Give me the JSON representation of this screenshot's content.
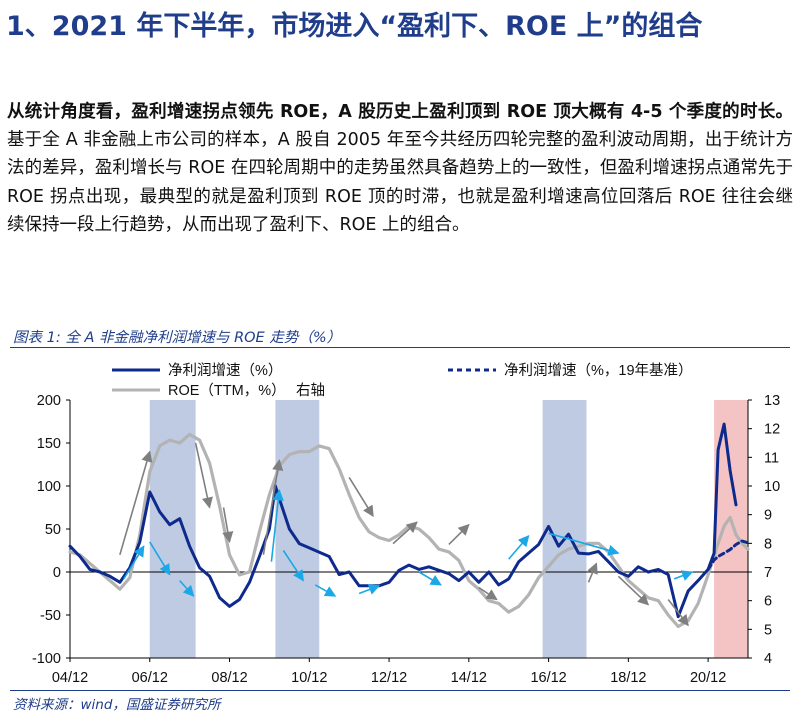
{
  "heading": "1、2021 年下半年，市场进入“盈利下、ROE 上”的组合",
  "paragraph": {
    "bold_lead": "从统计角度看，盈利增速拐点领先 ROE，A 股历史上盈利顶到 ROE 顶大概有 4-5 个季度的时长。",
    "text": "基于全 A 非金融上市公司的样本，A 股自 2005 年至今共经历四轮完整的盈利波动周期，出于统计方法的差异，盈利增长与 ROE 在四轮周期中的走势虽然具备趋势上的一致性，但盈利增速拐点通常先于 ROE 拐点出现，最典型的就是盈利顶到 ROE 顶的时滞，也就是盈利增速高位回落后 ROE 往往会继续保持一段上行趋势，从而出现了盈利下、ROE 上的组合。"
  },
  "figure_caption": "图表 1:  全 A 非金融净利润增速与 ROE 走势（%）",
  "source": "资料来源：wind，国盛证券研究所",
  "colors": {
    "heading": "#1f3d8a",
    "profit": "#0d2a8c",
    "roe": "#b3b3b3",
    "shade_blue": "#a9b9d9",
    "shade_red": "#f2b8b8",
    "arrow_gray": "#7f7f7f",
    "arrow_blue": "#1aa8e6"
  },
  "chart_data": {
    "type": "line",
    "legend": {
      "profit": "净利润增速（%）",
      "profit_base19": "净利润增速（%，19年基准）",
      "roe": "ROE（TTM，%）",
      "roe_note": "右轴"
    },
    "x_range": [
      2004.75,
      2021.75
    ],
    "x_ticks": [
      {
        "x": 2004.75,
        "label": "04/12"
      },
      {
        "x": 2006.75,
        "label": "06/12"
      },
      {
        "x": 2008.75,
        "label": "08/12"
      },
      {
        "x": 2010.75,
        "label": "10/12"
      },
      {
        "x": 2012.75,
        "label": "12/12"
      },
      {
        "x": 2014.75,
        "label": "14/12"
      },
      {
        "x": 2016.75,
        "label": "16/12"
      },
      {
        "x": 2018.75,
        "label": "18/12"
      },
      {
        "x": 2020.75,
        "label": "20/12"
      }
    ],
    "y_left": {
      "min": -100,
      "max": 200,
      "ticks": [
        -100,
        -50,
        0,
        50,
        100,
        150,
        200
      ]
    },
    "y_right": {
      "min": 4,
      "max": 13,
      "ticks": [
        4,
        5,
        6,
        7,
        8,
        9,
        10,
        11,
        12,
        13
      ]
    },
    "shaded_periods": [
      {
        "from": 2006.75,
        "to": 2007.9,
        "color": "blue"
      },
      {
        "from": 2009.9,
        "to": 2011.0,
        "color": "blue"
      },
      {
        "from": 2016.6,
        "to": 2017.7,
        "color": "blue"
      },
      {
        "from": 2020.9,
        "to": 2021.75,
        "color": "red"
      }
    ],
    "series": [
      {
        "name": "净利润增速（%）",
        "axis": "left",
        "style": "solid",
        "points": [
          [
            2004.75,
            30
          ],
          [
            2005.0,
            18
          ],
          [
            2005.25,
            3
          ],
          [
            2005.5,
            0
          ],
          [
            2005.75,
            -5
          ],
          [
            2006.0,
            -12
          ],
          [
            2006.25,
            5
          ],
          [
            2006.5,
            35
          ],
          [
            2006.75,
            93
          ],
          [
            2007.0,
            70
          ],
          [
            2007.25,
            55
          ],
          [
            2007.5,
            62
          ],
          [
            2007.75,
            30
          ],
          [
            2008.0,
            5
          ],
          [
            2008.25,
            -5
          ],
          [
            2008.5,
            -30
          ],
          [
            2008.75,
            -40
          ],
          [
            2009.0,
            -32
          ],
          [
            2009.25,
            -12
          ],
          [
            2009.5,
            18
          ],
          [
            2009.75,
            50
          ],
          [
            2009.9,
            100
          ],
          [
            2010.0,
            85
          ],
          [
            2010.25,
            50
          ],
          [
            2010.5,
            33
          ],
          [
            2010.75,
            28
          ],
          [
            2011.0,
            23
          ],
          [
            2011.25,
            18
          ],
          [
            2011.5,
            -3
          ],
          [
            2011.75,
            0
          ],
          [
            2012.0,
            -16
          ],
          [
            2012.5,
            -16
          ],
          [
            2012.75,
            -12
          ],
          [
            2013.0,
            2
          ],
          [
            2013.25,
            8
          ],
          [
            2013.5,
            3
          ],
          [
            2013.75,
            6
          ],
          [
            2014.0,
            2
          ],
          [
            2014.25,
            -2
          ],
          [
            2014.5,
            -10
          ],
          [
            2014.75,
            0
          ],
          [
            2015.0,
            -12
          ],
          [
            2015.25,
            0
          ],
          [
            2015.5,
            -15
          ],
          [
            2015.75,
            -8
          ],
          [
            2016.0,
            12
          ],
          [
            2016.25,
            22
          ],
          [
            2016.5,
            32
          ],
          [
            2016.75,
            53
          ],
          [
            2017.0,
            30
          ],
          [
            2017.25,
            44
          ],
          [
            2017.5,
            22
          ],
          [
            2017.75,
            21
          ],
          [
            2018.0,
            24
          ],
          [
            2018.25,
            12
          ],
          [
            2018.5,
            0
          ],
          [
            2018.75,
            -5
          ],
          [
            2019.0,
            6
          ],
          [
            2019.25,
            0
          ],
          [
            2019.5,
            3
          ],
          [
            2019.75,
            -3
          ],
          [
            2020.0,
            -52
          ],
          [
            2020.25,
            -22
          ],
          [
            2020.5,
            -10
          ],
          [
            2020.75,
            3
          ],
          [
            2020.9,
            22
          ],
          [
            2021.0,
            142
          ],
          [
            2021.15,
            172
          ],
          [
            2021.3,
            118
          ],
          [
            2021.45,
            78
          ]
        ]
      },
      {
        "name": "净利润增速（%，19年基准）",
        "axis": "left",
        "style": "dashed",
        "points": [
          [
            2020.75,
            3
          ],
          [
            2020.9,
            14
          ],
          [
            2021.0,
            18
          ],
          [
            2021.15,
            22
          ],
          [
            2021.3,
            26
          ],
          [
            2021.45,
            32
          ],
          [
            2021.6,
            36
          ],
          [
            2021.75,
            34
          ]
        ]
      },
      {
        "name": "ROE（TTM，%）",
        "axis": "right",
        "style": "solid",
        "points": [
          [
            2004.75,
            7.7
          ],
          [
            2005.0,
            7.6
          ],
          [
            2005.25,
            7.3
          ],
          [
            2005.5,
            7.0
          ],
          [
            2005.75,
            6.7
          ],
          [
            2006.0,
            6.4
          ],
          [
            2006.25,
            6.8
          ],
          [
            2006.5,
            8.3
          ],
          [
            2006.75,
            10.5
          ],
          [
            2007.0,
            11.4
          ],
          [
            2007.25,
            11.6
          ],
          [
            2007.5,
            11.5
          ],
          [
            2007.75,
            11.8
          ],
          [
            2008.0,
            11.6
          ],
          [
            2008.25,
            10.8
          ],
          [
            2008.5,
            9.3
          ],
          [
            2008.75,
            7.6
          ],
          [
            2009.0,
            6.9
          ],
          [
            2009.25,
            7.0
          ],
          [
            2009.5,
            8.4
          ],
          [
            2009.75,
            9.7
          ],
          [
            2010.0,
            10.7
          ],
          [
            2010.25,
            11.1
          ],
          [
            2010.5,
            11.2
          ],
          [
            2010.75,
            11.2
          ],
          [
            2011.0,
            11.4
          ],
          [
            2011.25,
            11.3
          ],
          [
            2011.5,
            10.6
          ],
          [
            2011.75,
            9.7
          ],
          [
            2012.0,
            8.9
          ],
          [
            2012.25,
            8.4
          ],
          [
            2012.5,
            8.2
          ],
          [
            2012.75,
            8.1
          ],
          [
            2013.0,
            8.3
          ],
          [
            2013.25,
            8.6
          ],
          [
            2013.5,
            8.5
          ],
          [
            2013.75,
            8.2
          ],
          [
            2014.0,
            7.8
          ],
          [
            2014.25,
            7.7
          ],
          [
            2014.5,
            7.4
          ],
          [
            2014.75,
            6.7
          ],
          [
            2015.0,
            6.4
          ],
          [
            2015.25,
            6.0
          ],
          [
            2015.5,
            5.9
          ],
          [
            2015.75,
            5.6
          ],
          [
            2016.0,
            5.8
          ],
          [
            2016.25,
            6.2
          ],
          [
            2016.5,
            6.8
          ],
          [
            2016.75,
            7.2
          ],
          [
            2017.0,
            7.6
          ],
          [
            2017.25,
            7.8
          ],
          [
            2017.5,
            7.9
          ],
          [
            2017.75,
            8.0
          ],
          [
            2018.0,
            8.0
          ],
          [
            2018.25,
            7.7
          ],
          [
            2018.5,
            7.2
          ],
          [
            2018.75,
            6.7
          ],
          [
            2019.0,
            6.4
          ],
          [
            2019.25,
            6.1
          ],
          [
            2019.5,
            6.0
          ],
          [
            2019.75,
            5.5
          ],
          [
            2020.0,
            5.1
          ],
          [
            2020.25,
            5.3
          ],
          [
            2020.5,
            5.9
          ],
          [
            2020.75,
            6.9
          ],
          [
            2021.0,
            8.0
          ],
          [
            2021.15,
            8.6
          ],
          [
            2021.3,
            8.9
          ],
          [
            2021.45,
            8.3
          ],
          [
            2021.6,
            8.0
          ],
          [
            2021.75,
            7.8
          ]
        ]
      }
    ],
    "annotation_arrows": [
      {
        "color": "gray",
        "from": [
          2006.0,
          20
        ],
        "to": [
          2006.75,
          140
        ]
      },
      {
        "color": "gray",
        "from": [
          2007.9,
          150
        ],
        "to": [
          2008.25,
          75
        ]
      },
      {
        "color": "gray",
        "from": [
          2008.6,
          75
        ],
        "to": [
          2008.75,
          35
        ]
      },
      {
        "color": "gray",
        "from": [
          2009.6,
          20
        ],
        "to": [
          2010.0,
          130
        ]
      },
      {
        "color": "gray",
        "from": [
          2011.75,
          110
        ],
        "to": [
          2012.35,
          65
        ]
      },
      {
        "color": "gray",
        "from": [
          2012.85,
          33
        ],
        "to": [
          2013.45,
          58
        ]
      },
      {
        "color": "gray",
        "from": [
          2014.25,
          32
        ],
        "to": [
          2014.75,
          55
        ]
      },
      {
        "color": "gray",
        "from": [
          2015.0,
          -18
        ],
        "to": [
          2015.45,
          -32
        ]
      },
      {
        "color": "gray",
        "from": [
          2017.75,
          -12
        ],
        "to": [
          2017.95,
          10
        ]
      },
      {
        "color": "gray",
        "from": [
          2018.5,
          -5
        ],
        "to": [
          2019.25,
          -38
        ]
      },
      {
        "color": "gray",
        "from": [
          2019.75,
          -32
        ],
        "to": [
          2020.25,
          -62
        ]
      },
      {
        "color": "blue",
        "from": [
          2006.1,
          -8
        ],
        "to": [
          2006.6,
          30
        ]
      },
      {
        "color": "blue",
        "from": [
          2006.75,
          35
        ],
        "to": [
          2007.25,
          -3
        ]
      },
      {
        "color": "blue",
        "from": [
          2007.5,
          -10
        ],
        "to": [
          2007.85,
          -28
        ]
      },
      {
        "color": "blue",
        "from": [
          2009.8,
          12
        ],
        "to": [
          2010.0,
          95
        ]
      },
      {
        "color": "blue",
        "from": [
          2010.1,
          25
        ],
        "to": [
          2010.6,
          -10
        ]
      },
      {
        "color": "blue",
        "from": [
          2010.9,
          -15
        ],
        "to": [
          2011.4,
          -28
        ]
      },
      {
        "color": "blue",
        "from": [
          2012.0,
          -25
        ],
        "to": [
          2012.5,
          -16
        ]
      },
      {
        "color": "blue",
        "from": [
          2013.5,
          0
        ],
        "to": [
          2014.05,
          -15
        ]
      },
      {
        "color": "blue",
        "from": [
          2015.75,
          15
        ],
        "to": [
          2016.25,
          42
        ]
      },
      {
        "color": "blue",
        "from": [
          2016.75,
          45
        ],
        "to": [
          2018.5,
          22
        ]
      },
      {
        "color": "blue",
        "from": [
          2019.9,
          -8
        ],
        "to": [
          2020.35,
          0
        ]
      }
    ]
  }
}
